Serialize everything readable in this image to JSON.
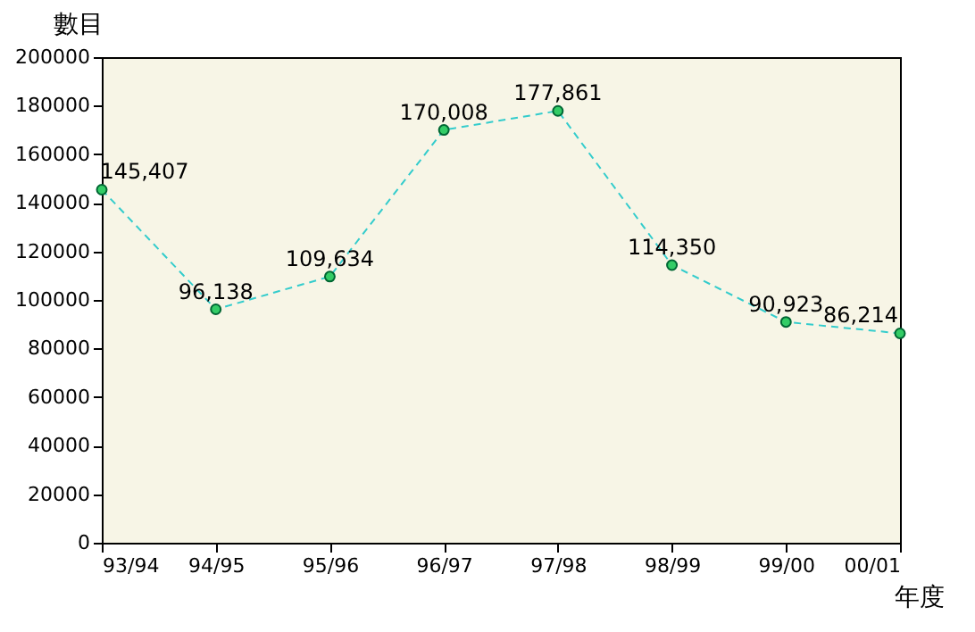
{
  "chart_data": {
    "type": "line",
    "xlabel": "年度",
    "ylabel": "數目",
    "categories": [
      "93/94",
      "94/95",
      "95/96",
      "96/97",
      "97/98",
      "98/99",
      "99/00",
      "00/01"
    ],
    "series": [
      {
        "color": "#33cccc",
        "values": [
          145407,
          96138,
          109634,
          170008,
          177861,
          114350,
          90923,
          86214
        ],
        "value_labels": [
          "145,407",
          "96,138",
          "109,634",
          "170,008",
          "177,861",
          "114,350",
          "90,923",
          "86,214"
        ]
      }
    ],
    "ylim": [
      0,
      200000
    ],
    "yticks": [
      0,
      20000,
      40000,
      60000,
      80000,
      100000,
      120000,
      140000,
      160000,
      180000,
      200000
    ],
    "marker": "circle",
    "line_style": "dashed",
    "grid": false,
    "legend": false
  }
}
